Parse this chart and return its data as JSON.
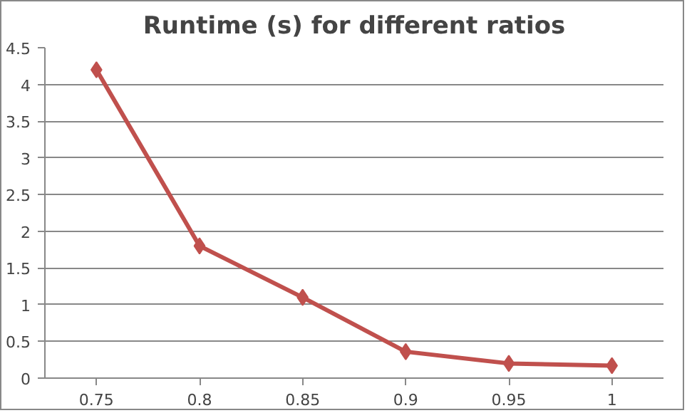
{
  "chart_data": {
    "type": "line",
    "title": "Runtime (s) for different ratios",
    "categories": [
      "0.75",
      "0.8",
      "0.85",
      "0.9",
      "0.95",
      "1"
    ],
    "series": [
      {
        "color": "#c0504d",
        "values": [
          4.2,
          1.8,
          1.1,
          0.36,
          0.2,
          0.17
        ]
      }
    ],
    "ylim": [
      0,
      4.5
    ],
    "yticks": [
      0,
      0.5,
      1,
      1.5,
      2,
      2.5,
      3,
      3.5,
      4,
      4.5
    ],
    "grid": "y",
    "marker": "diamond",
    "line_style": "solid"
  }
}
